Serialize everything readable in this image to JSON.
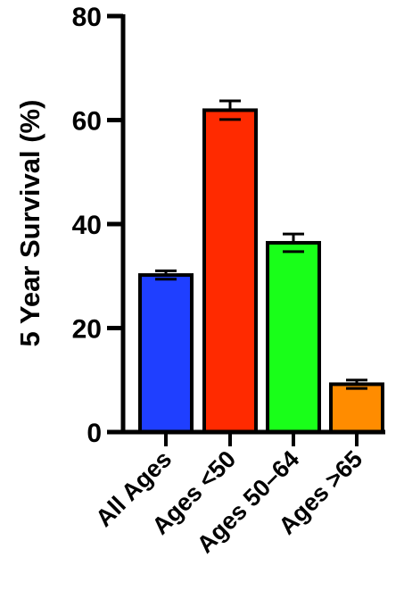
{
  "chart_data": {
    "type": "bar",
    "categories": [
      "All Ages",
      "Ages <50",
      "Ages 50–64",
      "Ages >65"
    ],
    "values": [
      30.2,
      61.9,
      36.4,
      9.2
    ],
    "error": [
      0.8,
      1.8,
      1.7,
      0.8
    ],
    "colors": [
      "#1f3fff",
      "#ff2a00",
      "#19ff19",
      "#ff8c00"
    ],
    "title": "",
    "xlabel": "",
    "ylabel": "5 Year Survival (%)",
    "ylim": [
      0,
      80
    ],
    "yticks": [
      0,
      20,
      40,
      60,
      80
    ],
    "grid": false
  }
}
